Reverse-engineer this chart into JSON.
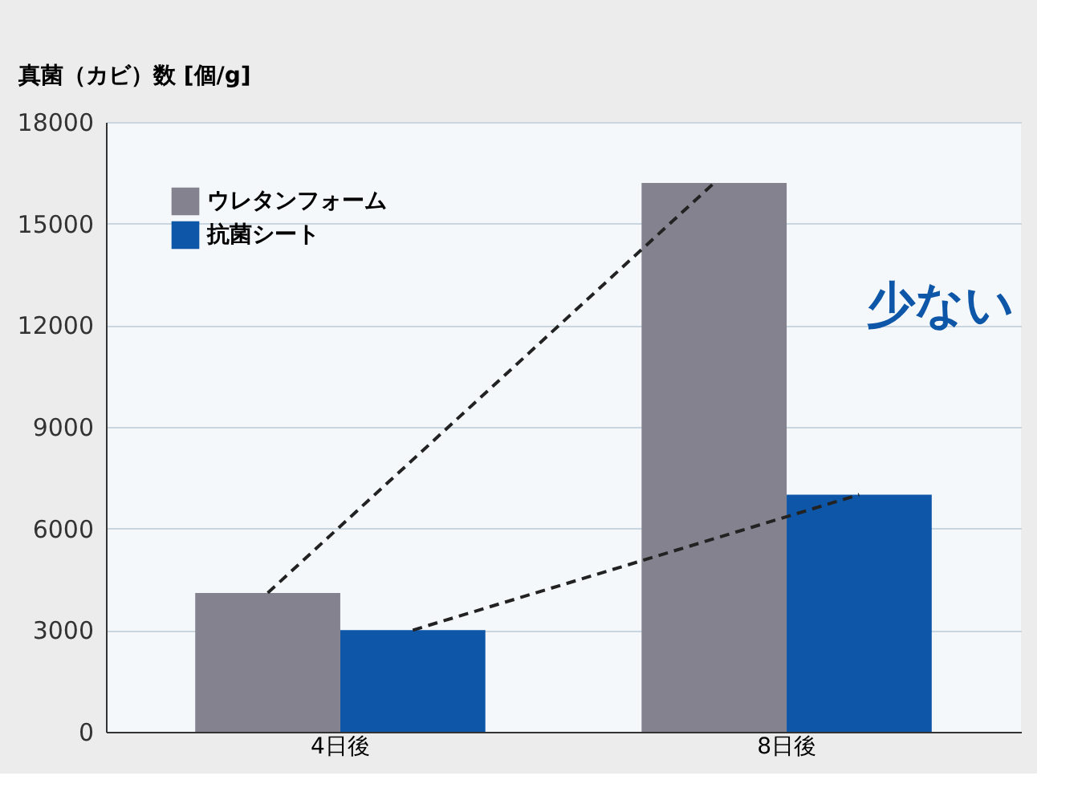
{
  "chart_data": {
    "type": "bar",
    "ylabel": "真菌（カビ）数 [個/g]",
    "categories": [
      "4日後",
      "8日後"
    ],
    "series": [
      {
        "name": "ウレタンフォーム",
        "color": "#85828f",
        "values": [
          4100,
          16200
        ],
        "line_style": "dashed"
      },
      {
        "name": "抗菌シート",
        "color": "#0d56a8",
        "values": [
          3000,
          7000
        ],
        "line_style": "dashed"
      }
    ],
    "ylim": [
      0,
      18000
    ],
    "yticks": [
      0,
      3000,
      6000,
      9000,
      12000,
      15000,
      18000
    ],
    "grid": "y",
    "legend": "top left",
    "annotations": [
      "少ない"
    ]
  }
}
